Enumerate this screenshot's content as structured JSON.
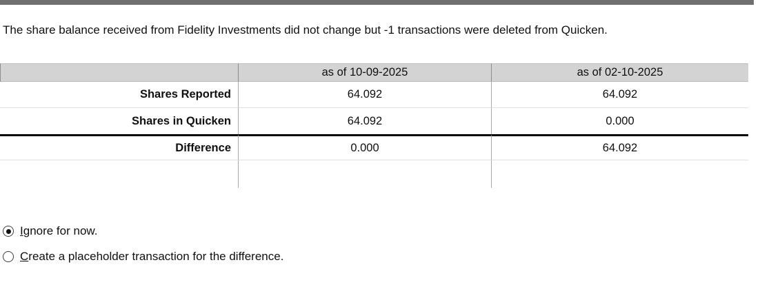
{
  "message": {
    "text": "The share balance received from Fidelity Investments did not change but -1 transactions were deleted from Quicken."
  },
  "table": {
    "corner": "",
    "col_headers": [
      "as of 10-09-2025",
      "as of 02-10-2025"
    ],
    "rows": [
      {
        "label": "Shares Reported",
        "values": [
          "64.092",
          "64.092"
        ]
      },
      {
        "label": "Shares in Quicken",
        "values": [
          "64.092",
          "0.000"
        ]
      },
      {
        "label": "Difference",
        "values": [
          "0.000",
          "64.092"
        ]
      }
    ]
  },
  "options": [
    {
      "label": "Ignore for now.",
      "mnemonic": "I",
      "selected": true
    },
    {
      "label": "Create a placeholder transaction for the difference.",
      "mnemonic": "C",
      "selected": false
    }
  ],
  "colors": {
    "top_bar": "#6f6f6f",
    "header_bg": "#d3d3d3",
    "column_separator": "#a8a8a8",
    "difference_rule": "#000000"
  }
}
